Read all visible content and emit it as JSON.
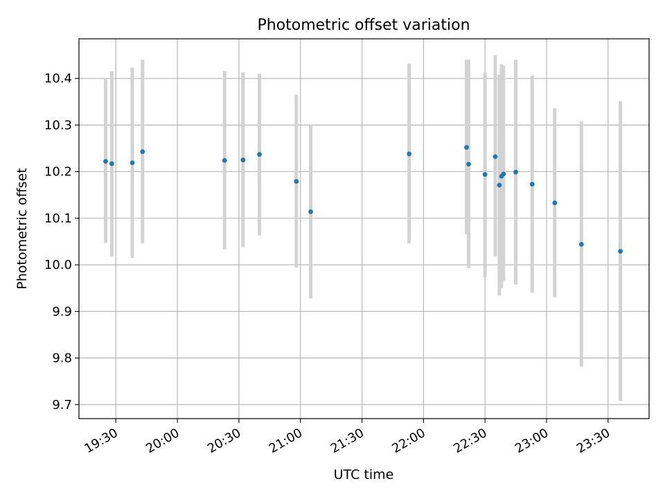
{
  "chart_data": {
    "type": "scatter",
    "title": "Photometric offset variation",
    "xlabel": "UTC time",
    "ylabel": "Photometric offset",
    "x_range": [
      "19:12",
      "23:50"
    ],
    "ylim": [
      9.67,
      10.485
    ],
    "grid": true,
    "x_ticks": [
      "19:30",
      "20:00",
      "20:30",
      "21:00",
      "21:30",
      "22:00",
      "22:30",
      "23:00",
      "23:30"
    ],
    "y_ticks": [
      9.7,
      9.8,
      9.9,
      10.0,
      10.1,
      10.2,
      10.3,
      10.4
    ],
    "y_tick_labels": [
      "9.7",
      "9.8",
      "9.9",
      "10.0",
      "10.1",
      "10.2",
      "10.3",
      "10.4"
    ],
    "colors": {
      "point": "#1f77b4",
      "errorbar": "#d3d3d3",
      "grid": "#b0b0b0"
    },
    "series": [
      {
        "points": [
          {
            "t": "19:25",
            "y": 10.222,
            "lo": 10.047,
            "hi": 10.4
          },
          {
            "t": "19:28",
            "y": 10.217,
            "lo": 10.018,
            "hi": 10.415
          },
          {
            "t": "19:38",
            "y": 10.219,
            "lo": 10.015,
            "hi": 10.423
          },
          {
            "t": "19:43",
            "y": 10.243,
            "lo": 10.046,
            "hi": 10.44
          },
          {
            "t": "20:23",
            "y": 10.224,
            "lo": 10.033,
            "hi": 10.416
          },
          {
            "t": "20:32",
            "y": 10.225,
            "lo": 10.038,
            "hi": 10.413
          },
          {
            "t": "20:40",
            "y": 10.237,
            "lo": 10.063,
            "hi": 10.41
          },
          {
            "t": "20:58",
            "y": 10.179,
            "lo": 9.994,
            "hi": 10.365
          },
          {
            "t": "21:05",
            "y": 10.114,
            "lo": 9.928,
            "hi": 10.3
          },
          {
            "t": "21:53",
            "y": 10.238,
            "lo": 10.046,
            "hi": 10.432
          },
          {
            "t": "22:21",
            "y": 10.252,
            "lo": 10.065,
            "hi": 10.44
          },
          {
            "t": "22:22",
            "y": 10.216,
            "lo": 9.993,
            "hi": 10.44
          },
          {
            "t": "22:30",
            "y": 10.194,
            "lo": 9.973,
            "hi": 10.413
          },
          {
            "t": "22:35",
            "y": 10.232,
            "lo": 10.018,
            "hi": 10.45
          },
          {
            "t": "22:37",
            "y": 10.171,
            "lo": 9.934,
            "hi": 10.408
          },
          {
            "t": "22:38",
            "y": 10.19,
            "lo": 9.95,
            "hi": 10.43
          },
          {
            "t": "22:39",
            "y": 10.195,
            "lo": 9.966,
            "hi": 10.427
          },
          {
            "t": "22:45",
            "y": 10.199,
            "lo": 9.958,
            "hi": 10.44
          },
          {
            "t": "22:53",
            "y": 10.173,
            "lo": 9.94,
            "hi": 10.407
          },
          {
            "t": "23:04",
            "y": 10.133,
            "lo": 9.93,
            "hi": 10.336
          },
          {
            "t": "23:17",
            "y": 10.044,
            "lo": 9.782,
            "hi": 10.308
          },
          {
            "t": "23:36",
            "y": 10.029,
            "lo": 9.708,
            "hi": 10.351
          }
        ]
      }
    ]
  }
}
